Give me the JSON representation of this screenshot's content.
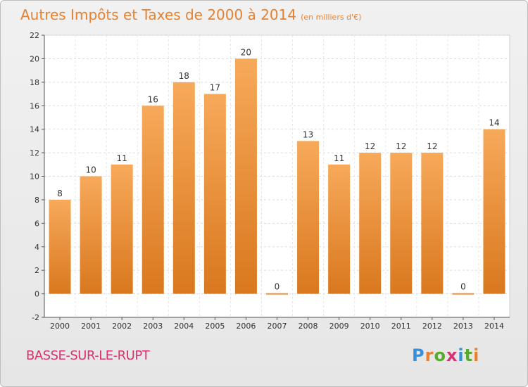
{
  "header": {
    "title": "Autres Impôts et Taxes de 2000 à 2014",
    "unit_note": "(en milliers d'€)"
  },
  "footer": {
    "place": "BASSE-SUR-LE-RUPT",
    "brand": "Proxiti"
  },
  "colors": {
    "title": "#e8812f",
    "bar_top": "#f7a95a",
    "bar_bottom": "#d9781e",
    "place": "#d6336e",
    "brand_letters": [
      "#3a8fd9",
      "#e8812f",
      "#5aaa2e",
      "#d6336e",
      "#3a8fd9",
      "#5aaa2e",
      "#e8812f"
    ]
  },
  "chart_data": {
    "type": "bar",
    "title": "Autres Impôts et Taxes de 2000 à 2014",
    "subtitle": "(en milliers d'€)",
    "xlabel": "",
    "ylabel": "",
    "categories": [
      "2000",
      "2001",
      "2002",
      "2003",
      "2004",
      "2005",
      "2006",
      "2007",
      "2008",
      "2009",
      "2010",
      "2011",
      "2012",
      "2013",
      "2014"
    ],
    "values": [
      8,
      10,
      11,
      16,
      18,
      17,
      20,
      0,
      13,
      11,
      12,
      12,
      12,
      0,
      14
    ],
    "ylim": [
      -2,
      22
    ],
    "yticks": [
      -2,
      0,
      2,
      4,
      6,
      8,
      10,
      12,
      14,
      16,
      18,
      20,
      22
    ],
    "grid": true,
    "legend": "none"
  }
}
